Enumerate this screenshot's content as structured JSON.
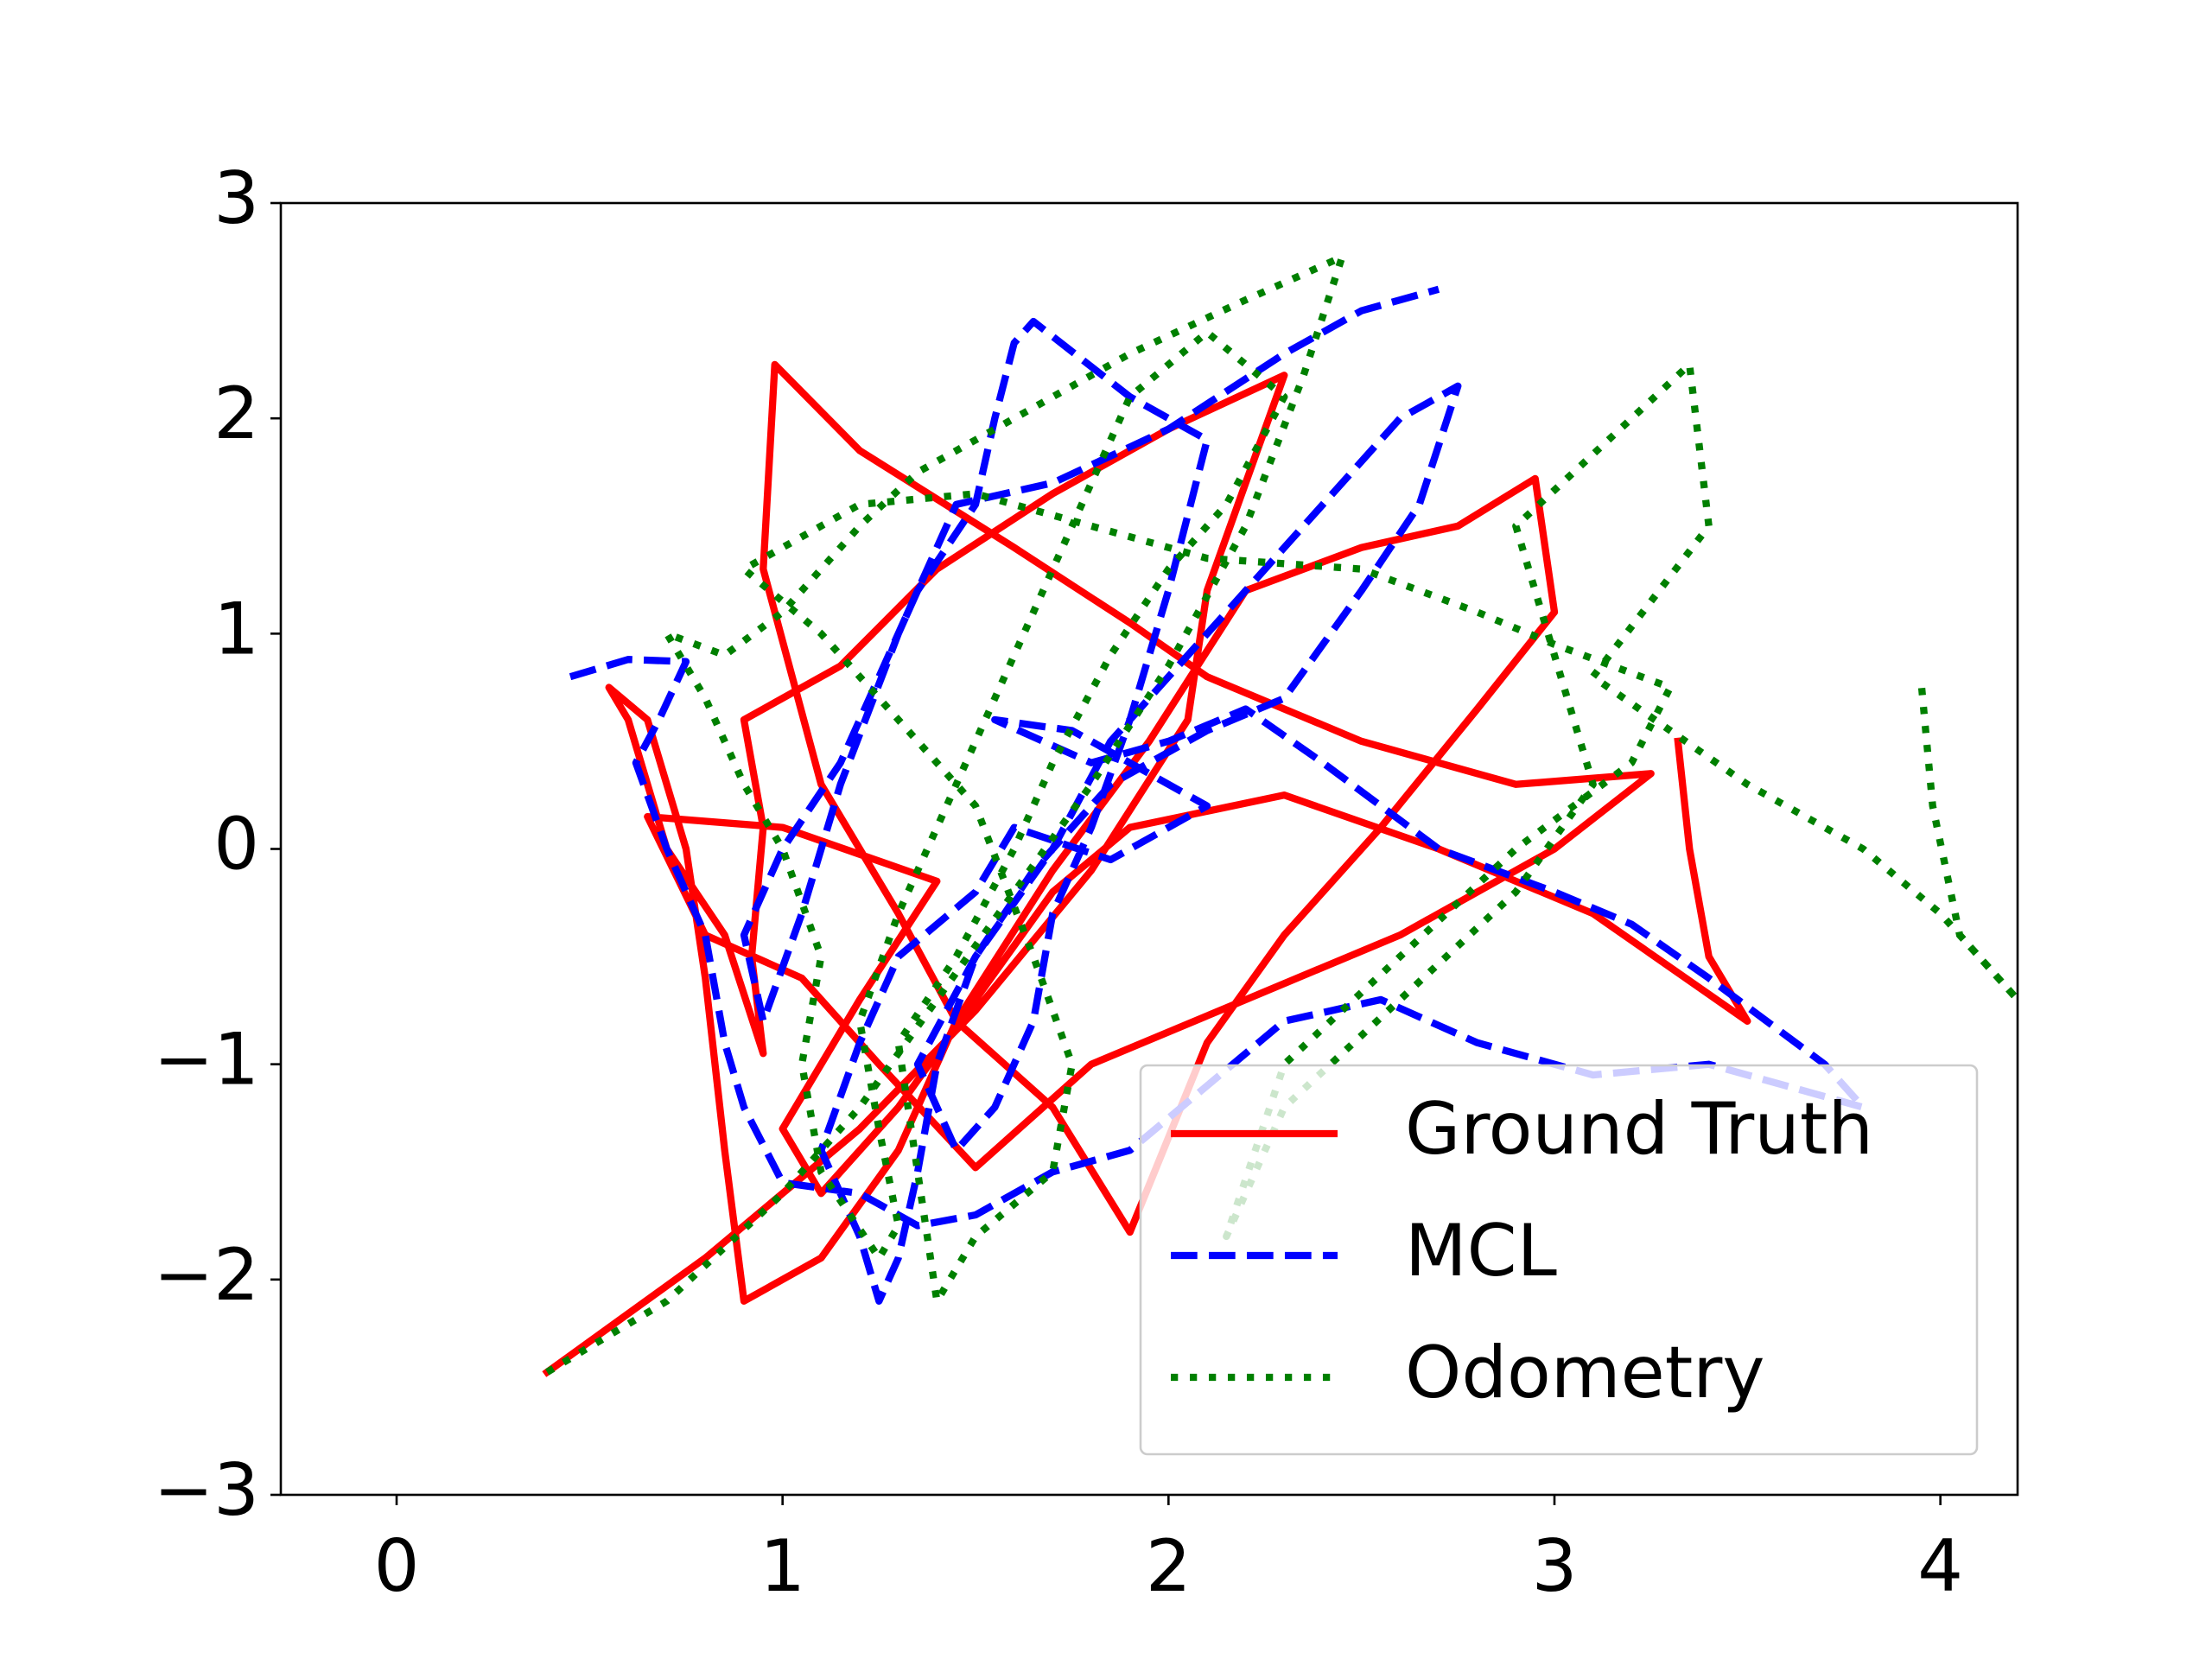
{
  "chart_data": {
    "type": "line",
    "xlim": [
      -0.3,
      4.2
    ],
    "ylim": [
      -3,
      3
    ],
    "xticks": [
      0,
      1,
      2,
      3,
      4
    ],
    "yticks": [
      {
        "value": -3,
        "label": "−3"
      },
      {
        "value": -2,
        "label": "−2"
      },
      {
        "value": -1,
        "label": "−1"
      },
      0,
      1,
      2,
      3
    ],
    "legend": "lower right",
    "series": [
      {
        "name": "Ground Truth",
        "color": "#ff0000",
        "style": "solid",
        "x": [
          0.39,
          0.8,
          1.2,
          1.5,
          1.8,
          2.05,
          2.1,
          2.3,
          2.0,
          1.7,
          1.4,
          1.15,
          0.9,
          0.95,
          0.92,
          0.95,
          0.85,
          0.7,
          0.6,
          0.55,
          0.65,
          0.75,
          0.8,
          0.85,
          0.9,
          1.1,
          1.3,
          1.45,
          1.7,
          1.95,
          2.2,
          2.5,
          2.75,
          2.95,
          3.0,
          2.8,
          2.55,
          2.3,
          2.1,
          1.9,
          1.7,
          1.45,
          1.3,
          1.1,
          0.95,
          0.98,
          1.2,
          1.6,
          1.9,
          2.1,
          2.5,
          2.9,
          3.25,
          3.0,
          2.6,
          2.2,
          1.8,
          1.5,
          1.25,
          1.05,
          0.8,
          0.65,
          1.0,
          1.4,
          1.2,
          1.0,
          1.1,
          1.3,
          1.5,
          1.7,
          1.9,
          2.3,
          2.7,
          3.1,
          3.5,
          3.4,
          3.35,
          3.32
        ],
        "values": [
          -2.43,
          -1.9,
          -1.3,
          -0.75,
          -0.1,
          0.6,
          1.2,
          2.2,
          1.95,
          1.65,
          1.3,
          0.85,
          0.6,
          0.1,
          -0.5,
          -0.95,
          -0.4,
          0.0,
          0.6,
          0.75,
          0.6,
          0.0,
          -0.6,
          -1.4,
          -2.1,
          -1.9,
          -1.4,
          -0.8,
          -0.1,
          0.5,
          1.2,
          1.4,
          1.5,
          1.72,
          1.1,
          0.65,
          0.1,
          -0.4,
          -0.9,
          -1.78,
          -1.2,
          -0.8,
          -0.3,
          0.3,
          1.3,
          2.25,
          1.85,
          1.4,
          1.05,
          0.8,
          0.5,
          0.3,
          0.35,
          0.0,
          -0.4,
          -0.7,
          -1.0,
          -1.48,
          -1.0,
          -0.6,
          -0.4,
          0.15,
          0.1,
          -0.15,
          -0.7,
          -1.3,
          -1.6,
          -1.2,
          -0.7,
          -0.2,
          0.1,
          0.25,
          0.0,
          -0.3,
          -0.8,
          -0.5,
          0.0,
          0.5
        ]
      },
      {
        "name": "MCL",
        "color": "#0000ff",
        "style": "dashed",
        "x": [
          0.45,
          0.6,
          0.75,
          0.68,
          0.62,
          0.7,
          0.8,
          0.85,
          0.9,
          1.0,
          1.2,
          1.35,
          1.5,
          1.7,
          1.9,
          2.1,
          2.3,
          2.55,
          2.8,
          3.1,
          3.4,
          3.6,
          3.8,
          3.7,
          3.4,
          3.2,
          3.0,
          2.7,
          2.4,
          2.2,
          2.0,
          1.8,
          1.55,
          1.75,
          1.95,
          2.1,
          1.85,
          1.6,
          1.5,
          1.3,
          1.2,
          1.1,
          1.2,
          1.25,
          1.3,
          1.35,
          1.4,
          1.5,
          1.65,
          1.85,
          2.1,
          2.3,
          2.5,
          2.65,
          2.75,
          2.6,
          2.4,
          2.2,
          2.05,
          1.85,
          1.7,
          1.5,
          1.35,
          1.45,
          1.55,
          1.65,
          1.7,
          1.8,
          1.9,
          2.0,
          2.1,
          1.9,
          1.65,
          1.6,
          1.55,
          1.5,
          1.35,
          1.25,
          1.15,
          1.0,
          0.9,
          0.95,
          1.05,
          1.15,
          1.3,
          1.45,
          1.7,
          2.0,
          2.3,
          2.5,
          2.7
        ],
        "values": [
          0.8,
          0.88,
          0.87,
          0.6,
          0.4,
          0.0,
          -0.4,
          -0.9,
          -1.2,
          -1.55,
          -1.6,
          -1.75,
          -1.7,
          -1.5,
          -1.4,
          -1.1,
          -0.8,
          -0.7,
          -0.9,
          -1.05,
          -1.0,
          -1.1,
          -1.2,
          -1.0,
          -0.6,
          -0.35,
          -0.2,
          0.0,
          0.4,
          0.65,
          0.5,
          0.4,
          0.6,
          0.55,
          0.35,
          0.2,
          -0.05,
          0.1,
          -0.2,
          -0.5,
          -0.9,
          -1.4,
          -1.8,
          -2.1,
          -1.9,
          -1.5,
          -1.0,
          -0.5,
          -0.1,
          0.3,
          0.55,
          0.7,
          1.2,
          1.6,
          2.15,
          2.0,
          1.6,
          1.2,
          0.9,
          0.5,
          0.0,
          -0.5,
          -1.0,
          -1.4,
          -1.2,
          -0.8,
          -0.3,
          0.1,
          0.6,
          1.2,
          1.9,
          2.1,
          2.45,
          2.35,
          2.0,
          1.6,
          1.2,
          0.8,
          0.4,
          0.0,
          -0.4,
          -0.8,
          -0.3,
          0.3,
          1.0,
          1.6,
          1.7,
          1.95,
          2.3,
          2.5,
          2.6
        ]
      },
      {
        "name": "Odometry",
        "color": "#008000",
        "style": "dotted",
        "x": [
          0.39,
          0.7,
          1.0,
          1.2,
          1.4,
          1.6,
          1.8,
          2.0,
          2.2,
          2.35,
          2.45,
          2.2,
          1.9,
          1.6,
          1.35,
          1.2,
          1.0,
          0.85,
          0.7,
          0.8,
          0.9,
          1.0,
          1.1,
          1.05,
          1.1,
          1.25,
          1.3,
          1.25,
          1.2,
          1.3,
          1.45,
          1.6,
          1.75,
          1.9,
          2.1,
          2.3,
          2.15,
          2.0,
          1.85,
          1.7,
          1.6,
          1.45,
          1.3,
          1.4,
          1.5,
          1.7,
          1.75,
          1.65,
          1.5,
          1.3,
          1.1,
          0.9,
          1.2,
          1.5,
          1.8,
          2.1,
          2.5,
          2.8,
          3.0,
          3.3,
          3.2,
          2.9,
          2.6,
          2.3,
          2.15,
          2.3,
          2.6,
          2.9,
          3.1,
          2.9,
          3.2,
          3.35,
          3.4,
          3.1,
          3.5,
          3.8,
          4.0,
          4.2,
          4.05,
          3.98,
          3.95
        ],
        "values": [
          -2.43,
          -2.1,
          -1.6,
          -1.2,
          -0.7,
          -0.2,
          0.3,
          0.85,
          1.5,
          2.2,
          2.75,
          2.55,
          2.3,
          2.0,
          1.75,
          1.5,
          1.1,
          0.9,
          1.0,
          0.7,
          0.3,
          0.0,
          -0.5,
          -1.0,
          -1.5,
          -1.9,
          -1.75,
          -1.3,
          -0.8,
          -0.3,
          0.3,
          0.9,
          1.5,
          2.1,
          2.4,
          2.1,
          1.6,
          1.3,
          0.9,
          0.4,
          0.0,
          -0.5,
          -0.9,
          -2.1,
          -1.8,
          -1.5,
          -1.0,
          -0.5,
          0.2,
          0.6,
          1.0,
          1.3,
          1.6,
          1.65,
          1.5,
          1.35,
          1.3,
          1.1,
          0.95,
          0.75,
          0.4,
          0.0,
          -0.5,
          -1.0,
          -1.8,
          -1.2,
          -0.7,
          -0.2,
          0.3,
          1.5,
          2.0,
          2.25,
          1.5,
          0.8,
          0.3,
          0.0,
          -0.3,
          -0.7,
          -0.4,
          0.2,
          0.78
        ]
      }
    ]
  }
}
